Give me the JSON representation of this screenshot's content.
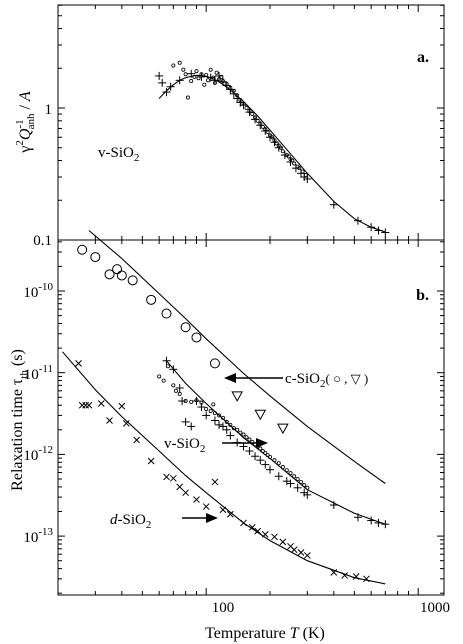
{
  "chart_data": [
    {
      "panel": "a.",
      "type": "scatter",
      "xscale": "log",
      "yscale": "log",
      "xlim": [
        20,
        1000
      ],
      "ylim": [
        0.1,
        2.6
      ],
      "ylabel_parts": {
        "gamma": "γ",
        "sup2": "2",
        "q": "Q",
        "supm1": "-1",
        "sub": "anh",
        "slash": " / ",
        "a": "A"
      },
      "yticks": [
        {
          "value": 0.1,
          "label": "0.1"
        },
        {
          "value": 1,
          "label": "1"
        }
      ],
      "annotations": [
        {
          "text": "v-SiO",
          "sub": "2"
        }
      ],
      "series": [
        {
          "marker": "plus",
          "points": [
            [
              60,
              1.75
            ],
            [
              62,
              1.55
            ],
            [
              65,
              1.32
            ],
            [
              68,
              1.45
            ],
            [
              75,
              1.62
            ],
            [
              85,
              1.82
            ],
            [
              95,
              1.72
            ],
            [
              105,
              1.7
            ],
            [
              110,
              1.62
            ],
            [
              115,
              1.75
            ],
            [
              120,
              1.58
            ],
            [
              125,
              1.48
            ],
            [
              130,
              1.38
            ],
            [
              135,
              1.28
            ],
            [
              140,
              1.18
            ],
            [
              145,
              1.1
            ],
            [
              150,
              1.05
            ],
            [
              160,
              0.93
            ],
            [
              170,
              0.82
            ],
            [
              180,
              0.74
            ],
            [
              190,
              0.67
            ],
            [
              200,
              0.6
            ],
            [
              210,
              0.55
            ],
            [
              220,
              0.5
            ],
            [
              235,
              0.44
            ],
            [
              250,
              0.39
            ],
            [
              265,
              0.35
            ],
            [
              280,
              0.32
            ],
            [
              290,
              0.3
            ],
            [
              300,
              0.29
            ],
            [
              400,
              0.185
            ],
            [
              520,
              0.14
            ],
            [
              600,
              0.125
            ],
            [
              650,
              0.118
            ],
            [
              700,
              0.114
            ]
          ]
        },
        {
          "marker": "dot",
          "points": [
            [
              70,
              2.1
            ],
            [
              75,
              2.2
            ],
            [
              78,
              1.95
            ],
            [
              80,
              1.8
            ],
            [
              82,
              1.2
            ],
            [
              85,
              1.6
            ],
            [
              88,
              1.72
            ],
            [
              90,
              1.9
            ],
            [
              92,
              1.68
            ],
            [
              95,
              1.8
            ],
            [
              98,
              1.5
            ],
            [
              100,
              1.78
            ],
            [
              102,
              1.62
            ],
            [
              105,
              1.95
            ],
            [
              108,
              1.7
            ],
            [
              110,
              1.55
            ],
            [
              112,
              1.85
            ],
            [
              115,
              1.65
            ],
            [
              118,
              1.72
            ],
            [
              120,
              1.6
            ],
            [
              125,
              1.52
            ],
            [
              130,
              1.42
            ],
            [
              135,
              1.35
            ],
            [
              140,
              1.25
            ],
            [
              145,
              1.15
            ],
            [
              150,
              1.08
            ],
            [
              155,
              1.0
            ],
            [
              160,
              0.95
            ],
            [
              165,
              0.9
            ],
            [
              170,
              0.85
            ],
            [
              175,
              0.8
            ],
            [
              180,
              0.76
            ],
            [
              185,
              0.72
            ],
            [
              190,
              0.69
            ],
            [
              195,
              0.66
            ],
            [
              200,
              0.62
            ],
            [
              205,
              0.6
            ],
            [
              210,
              0.57
            ],
            [
              215,
              0.54
            ],
            [
              220,
              0.52
            ],
            [
              225,
              0.5
            ],
            [
              230,
              0.47
            ],
            [
              240,
              0.44
            ],
            [
              245,
              0.43
            ],
            [
              250,
              0.41
            ],
            [
              255,
              0.4
            ],
            [
              260,
              0.38
            ],
            [
              270,
              0.36
            ],
            [
              275,
              0.35
            ],
            [
              285,
              0.33
            ],
            [
              295,
              0.31
            ]
          ]
        }
      ],
      "fit_curve": [
        [
          60,
          1.18
        ],
        [
          65,
          1.35
        ],
        [
          70,
          1.5
        ],
        [
          75,
          1.62
        ],
        [
          80,
          1.7
        ],
        [
          90,
          1.77
        ],
        [
          100,
          1.74
        ],
        [
          110,
          1.64
        ],
        [
          120,
          1.51
        ],
        [
          130,
          1.37
        ],
        [
          150,
          1.12
        ],
        [
          175,
          0.87
        ],
        [
          200,
          0.68
        ],
        [
          250,
          0.45
        ],
        [
          300,
          0.32
        ],
        [
          400,
          0.196
        ],
        [
          500,
          0.145
        ],
        [
          600,
          0.125
        ],
        [
          700,
          0.115
        ]
      ]
    },
    {
      "panel": "b.",
      "type": "scatter",
      "xscale": "log",
      "yscale": "log",
      "xlim": [
        20,
        1000
      ],
      "ylim": [
        2.5e-14,
        5.5e-10
      ],
      "xlabel": "Temperature",
      "xlabel_var": "T",
      "xlabel_unit": "(K)",
      "xticks": [
        {
          "value": 100,
          "label": "100"
        },
        {
          "value": 1000,
          "label": "1000"
        }
      ],
      "ylabel_main": "Relaxation time τ",
      "ylabel_sub": "th",
      "ylabel_unit": "(s)",
      "yticks": [
        {
          "value": 1e-10,
          "base": "10",
          "exp": "-10"
        },
        {
          "value": 1e-11,
          "base": "10",
          "exp": "-11"
        },
        {
          "value": 1e-12,
          "base": "10",
          "exp": "-12"
        },
        {
          "value": 1e-13,
          "base": "10",
          "exp": "-13"
        }
      ],
      "annotations": [
        {
          "id": "c",
          "text": "c-SiO",
          "sub": "2",
          "suffix": "( ○ , ▽ )"
        },
        {
          "id": "v",
          "text": "v-SiO",
          "sub": "2"
        },
        {
          "id": "d",
          "text": "d",
          "rest": "-SiO",
          "sub": "2"
        }
      ],
      "series": [
        {
          "name": "c-SiO2 (○)",
          "marker": "circle",
          "points": [
            [
              26,
              3.2e-10
            ],
            [
              30,
              2.6e-10
            ],
            [
              35,
              1.6e-10
            ],
            [
              38,
              1.85e-10
            ],
            [
              40,
              1.55e-10
            ],
            [
              45,
              1.35e-10
            ],
            [
              55,
              7.8e-11
            ],
            [
              65,
              5.3e-11
            ],
            [
              80,
              3.6e-11
            ],
            [
              90,
              2.7e-11
            ],
            [
              110,
              1.3e-11
            ]
          ]
        },
        {
          "name": "c-SiO2 (▽)",
          "marker": "triangle",
          "points": [
            [
              140,
              5.2e-12
            ],
            [
              180,
              3.1e-12
            ],
            [
              230,
              2.1e-12
            ]
          ]
        },
        {
          "name": "v-SiO2 (+)",
          "marker": "plus",
          "points": [
            [
              65,
              1.4e-11
            ],
            [
              70,
              1.1e-11
            ],
            [
              75,
              6.5e-12
            ],
            [
              77,
              4.5e-12
            ],
            [
              80,
              2.5e-12
            ],
            [
              85,
              2.2e-12
            ],
            [
              90,
              4.5e-12
            ],
            [
              95,
              3.8e-12
            ],
            [
              100,
              3e-12
            ],
            [
              110,
              2.6e-12
            ],
            [
              115,
              2.3e-12
            ],
            [
              120,
              2.2e-12
            ],
            [
              125,
              2e-12
            ],
            [
              130,
              1.7e-12
            ],
            [
              140,
              1.4e-12
            ],
            [
              150,
              1.25e-12
            ],
            [
              160,
              1.1e-12
            ],
            [
              170,
              9.5e-13
            ],
            [
              180,
              8.5e-13
            ],
            [
              190,
              7.5e-13
            ],
            [
              200,
              6.5e-13
            ],
            [
              220,
              5.4e-13
            ],
            [
              240,
              4.7e-13
            ],
            [
              250,
              4.4e-13
            ],
            [
              270,
              3.9e-13
            ],
            [
              290,
              3.4e-13
            ],
            [
              300,
              3.2e-13
            ],
            [
              400,
              2.4e-13
            ],
            [
              520,
              1.7e-13
            ],
            [
              600,
              1.55e-13
            ],
            [
              650,
              1.45e-13
            ],
            [
              700,
              1.4e-13
            ]
          ]
        },
        {
          "name": "v-SiO2 (·)",
          "marker": "dot",
          "points": [
            [
              60,
              9e-12
            ],
            [
              63,
              8e-12
            ],
            [
              66,
              1.2e-11
            ],
            [
              70,
              7e-12
            ],
            [
              72,
              6e-12
            ],
            [
              75,
              5.5e-12
            ],
            [
              80,
              4.5e-12
            ],
            [
              85,
              4.4e-12
            ],
            [
              90,
              4.6e-12
            ],
            [
              95,
              4.3e-12
            ],
            [
              100,
              3.6e-12
            ],
            [
              105,
              3.4e-12
            ],
            [
              108,
              4.1e-12
            ],
            [
              110,
              3.2e-12
            ],
            [
              115,
              3e-12
            ],
            [
              120,
              2.8e-12
            ],
            [
              125,
              2.5e-12
            ],
            [
              130,
              2.3e-12
            ],
            [
              135,
              2.1e-12
            ],
            [
              140,
              2e-12
            ],
            [
              145,
              1.85e-12
            ],
            [
              150,
              1.75e-12
            ],
            [
              155,
              1.62e-12
            ],
            [
              160,
              1.52e-12
            ],
            [
              165,
              1.42e-12
            ],
            [
              170,
              1.33e-12
            ],
            [
              175,
              1.25e-12
            ],
            [
              180,
              1.18e-12
            ],
            [
              185,
              1.1e-12
            ],
            [
              190,
              1.04e-12
            ],
            [
              195,
              9.8e-13
            ],
            [
              200,
              9.3e-13
            ],
            [
              210,
              8.5e-13
            ],
            [
              220,
              7.8e-13
            ],
            [
              230,
              7e-13
            ],
            [
              240,
              6.4e-13
            ],
            [
              250,
              5.9e-13
            ],
            [
              260,
              5.4e-13
            ],
            [
              270,
              5e-13
            ],
            [
              280,
              4.6e-13
            ],
            [
              290,
              4.2e-13
            ],
            [
              300,
              3.9e-13
            ]
          ]
        },
        {
          "name": "d-SiO2 (×)",
          "marker": "cross",
          "points": [
            [
              25,
              1.3e-11
            ],
            [
              26,
              4e-12
            ],
            [
              27,
              4e-12
            ],
            [
              28,
              4e-12
            ],
            [
              32,
              4.2e-12
            ],
            [
              35,
              2.6e-12
            ],
            [
              40,
              3.9e-12
            ],
            [
              42,
              2.4e-12
            ],
            [
              47,
              1.5e-12
            ],
            [
              55,
              8.3e-13
            ],
            [
              65,
              5.3e-13
            ],
            [
              70,
              5.1e-13
            ],
            [
              75,
              4e-13
            ],
            [
              80,
              3.4e-13
            ],
            [
              90,
              2.8e-13
            ],
            [
              100,
              2.3e-13
            ],
            [
              110,
              4.6e-13
            ],
            [
              120,
              2.1e-13
            ],
            [
              130,
              1.85e-13
            ],
            [
              150,
              1.45e-13
            ],
            [
              165,
              1.28e-13
            ],
            [
              175,
              1.15e-13
            ],
            [
              190,
              1.05e-13
            ],
            [
              210,
              9.8e-14
            ],
            [
              230,
              8.5e-14
            ],
            [
              250,
              7.5e-14
            ],
            [
              260,
              6.8e-14
            ],
            [
              280,
              6.3e-14
            ],
            [
              300,
              5.8e-14
            ],
            [
              400,
              3.6e-14
            ],
            [
              450,
              3.3e-14
            ],
            [
              510,
              3.2e-14
            ],
            [
              570,
              3e-14
            ]
          ]
        }
      ],
      "fit_curves": [
        [
          [
            28,
            5.5e-10
          ],
          [
            40,
            2.5e-10
          ],
          [
            60,
            9.3e-11
          ],
          [
            80,
            4.6e-11
          ],
          [
            100,
            2.6e-11
          ],
          [
            150,
            9.8e-12
          ],
          [
            200,
            5.2e-12
          ],
          [
            300,
            2.2e-12
          ],
          [
            500,
            8.2e-13
          ],
          [
            700,
            4.4e-13
          ]
        ],
        [
          [
            65,
            1.4e-11
          ],
          [
            80,
            7.4e-12
          ],
          [
            100,
            4.2e-12
          ],
          [
            150,
            1.6e-12
          ],
          [
            200,
            8.9e-13
          ],
          [
            300,
            3.7e-13
          ],
          [
            500,
            1.9e-13
          ],
          [
            700,
            1.4e-13
          ]
        ],
        [
          [
            21,
            1.8e-11
          ],
          [
            30,
            6.2e-12
          ],
          [
            40,
            2.9e-12
          ],
          [
            60,
            1.1e-12
          ],
          [
            80,
            5.5e-13
          ],
          [
            100,
            3.4e-13
          ],
          [
            150,
            1.45e-13
          ],
          [
            200,
            8.8e-14
          ],
          [
            300,
            5e-14
          ],
          [
            500,
            3.1e-14
          ],
          [
            700,
            2.6e-14
          ]
        ]
      ]
    }
  ]
}
